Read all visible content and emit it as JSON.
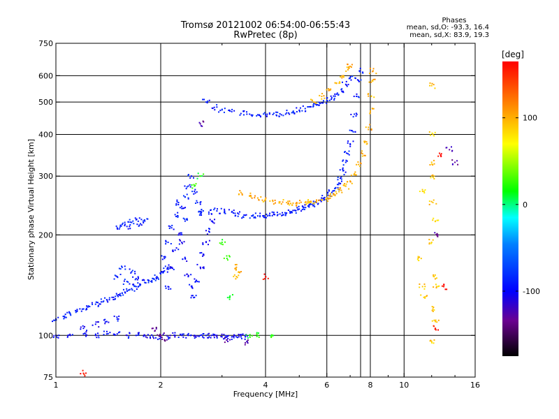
{
  "header": {
    "title": "Tromsø 20121002 06:54:00-06:55:43",
    "subtitle": "RwPretec (8p)"
  },
  "stats": {
    "heading": "Phases",
    "line_o": "mean, sd,O: -93.3, 16.4",
    "line_x": "mean, sd,X:  83.9, 19.3"
  },
  "colorbar": {
    "unit_label": "[deg]",
    "ticks": [
      {
        "value": 100,
        "label": "100"
      },
      {
        "value": 0,
        "label": "0"
      },
      {
        "value": -100,
        "label": "-100"
      }
    ],
    "range": [
      -175,
      165
    ]
  },
  "chart_data": {
    "type": "scatter",
    "xlabel": "Frequency [MHz]",
    "ylabel": "Stationary phase Virtual Height [km]",
    "xscale": "log",
    "yscale": "log",
    "xlim": [
      1,
      16
    ],
    "ylim": [
      75,
      750
    ],
    "xticks": [
      {
        "value": 1,
        "label": "1"
      },
      {
        "value": 2,
        "label": "2"
      },
      {
        "value": 4,
        "label": "4"
      },
      {
        "value": 6,
        "label": "6"
      },
      {
        "value": 8,
        "label": "8"
      },
      {
        "value": 10,
        "label": "10"
      },
      {
        "value": 16,
        "label": "16"
      }
    ],
    "yticks": [
      {
        "value": 75,
        "label": "75"
      },
      {
        "value": 100,
        "label": "100"
      },
      {
        "value": 200,
        "label": "200"
      },
      {
        "value": 300,
        "label": "300"
      },
      {
        "value": 400,
        "label": "400"
      },
      {
        "value": 500,
        "label": "500"
      },
      {
        "value": 600,
        "label": "600"
      },
      {
        "value": 750,
        "label": "750"
      }
    ],
    "grid": {
      "x": [
        2,
        4,
        6,
        7.5,
        8,
        10
      ],
      "y": [
        100,
        200,
        300,
        400,
        500,
        600
      ]
    },
    "series": [
      {
        "phase": -90,
        "points": [
          [
            1.0,
            112
          ],
          [
            1.05,
            114
          ],
          [
            1.1,
            116
          ],
          [
            1.15,
            118
          ],
          [
            1.2,
            120
          ],
          [
            1.25,
            122
          ],
          [
            1.3,
            124
          ],
          [
            1.35,
            126
          ],
          [
            1.4,
            128
          ],
          [
            1.45,
            130
          ],
          [
            1.5,
            132
          ],
          [
            1.55,
            134
          ],
          [
            1.6,
            136
          ],
          [
            1.65,
            138
          ],
          [
            1.7,
            140
          ],
          [
            1.75,
            142
          ],
          [
            1.8,
            144
          ],
          [
            1.85,
            146
          ],
          [
            1.9,
            148
          ],
          [
            1.95,
            150
          ],
          [
            2.0,
            153
          ],
          [
            2.05,
            156
          ],
          [
            2.1,
            160
          ],
          [
            2.6,
            232
          ],
          [
            2.75,
            234
          ],
          [
            2.9,
            236
          ],
          [
            3.05,
            236
          ],
          [
            3.2,
            234
          ],
          [
            3.35,
            231
          ],
          [
            3.5,
            229
          ],
          [
            3.65,
            228
          ],
          [
            3.8,
            228
          ],
          [
            3.95,
            228
          ],
          [
            4.1,
            229
          ],
          [
            4.25,
            230
          ],
          [
            4.4,
            231
          ],
          [
            4.55,
            233
          ],
          [
            4.7,
            235
          ],
          [
            4.85,
            237
          ],
          [
            5.0,
            239
          ],
          [
            5.15,
            242
          ],
          [
            5.3,
            244
          ],
          [
            5.45,
            247
          ],
          [
            5.6,
            250
          ],
          [
            5.75,
            254
          ],
          [
            5.9,
            258
          ],
          [
            6.05,
            263
          ],
          [
            6.2,
            268
          ],
          [
            6.35,
            276
          ],
          [
            6.5,
            286
          ],
          [
            6.6,
            298
          ],
          [
            6.7,
            312
          ],
          [
            6.8,
            330
          ],
          [
            6.9,
            350
          ],
          [
            7.0,
            375
          ],
          [
            7.1,
            410
          ],
          [
            7.2,
            460
          ],
          [
            7.3,
            520
          ],
          [
            7.4,
            580
          ],
          [
            7.45,
            620
          ],
          [
            2.7,
            500
          ],
          [
            2.85,
            482
          ],
          [
            3.0,
            474
          ],
          [
            3.2,
            468
          ],
          [
            3.4,
            462
          ],
          [
            3.6,
            460
          ],
          [
            3.8,
            458
          ],
          [
            4.0,
            458
          ],
          [
            4.2,
            459
          ],
          [
            4.4,
            461
          ],
          [
            4.6,
            464
          ],
          [
            4.8,
            468
          ],
          [
            5.0,
            472
          ],
          [
            5.2,
            478
          ],
          [
            5.4,
            484
          ],
          [
            5.6,
            490
          ],
          [
            5.8,
            497
          ],
          [
            6.0,
            505
          ],
          [
            6.2,
            515
          ],
          [
            6.4,
            528
          ],
          [
            6.6,
            545
          ],
          [
            6.8,
            565
          ],
          [
            7.0,
            590
          ],
          [
            1.5,
            210
          ],
          [
            1.55,
            215
          ],
          [
            1.6,
            212
          ],
          [
            1.65,
            218
          ],
          [
            1.7,
            222
          ],
          [
            1.75,
            216
          ],
          [
            1.8,
            220
          ],
          [
            1.5,
            150
          ],
          [
            1.55,
            160
          ],
          [
            1.6,
            145
          ],
          [
            1.65,
            155
          ],
          [
            1.7,
            148
          ],
          [
            2.05,
            170
          ],
          [
            2.1,
            190
          ],
          [
            2.15,
            210
          ],
          [
            2.2,
            230
          ],
          [
            2.25,
            250
          ],
          [
            2.3,
            240
          ],
          [
            2.35,
            220
          ],
          [
            2.35,
            260
          ],
          [
            2.4,
            280
          ],
          [
            2.45,
            300
          ],
          [
            2.5,
            270
          ],
          [
            2.55,
            250
          ],
          [
            2.6,
            235
          ]
        ]
      },
      {
        "phase": -100,
        "points": [
          [
            1.0,
            100
          ],
          [
            1.1,
            100
          ],
          [
            1.2,
            101
          ],
          [
            1.3,
            100
          ],
          [
            1.4,
            101
          ],
          [
            1.5,
            101
          ],
          [
            1.6,
            100
          ],
          [
            1.7,
            100
          ],
          [
            1.8,
            100
          ],
          [
            1.9,
            99
          ],
          [
            2.0,
            99
          ],
          [
            2.1,
            99
          ],
          [
            2.2,
            100
          ],
          [
            2.3,
            100
          ],
          [
            2.4,
            100
          ],
          [
            2.5,
            100
          ],
          [
            2.6,
            100
          ],
          [
            2.7,
            100
          ],
          [
            2.8,
            100
          ],
          [
            2.9,
            100
          ],
          [
            3.0,
            99
          ],
          [
            3.1,
            99
          ],
          [
            3.2,
            99
          ],
          [
            3.3,
            99
          ],
          [
            3.4,
            99
          ],
          [
            3.5,
            99
          ],
          [
            1.2,
            105
          ],
          [
            1.3,
            108
          ],
          [
            1.4,
            110
          ],
          [
            1.5,
            112
          ],
          [
            2.1,
            140
          ],
          [
            2.15,
            160
          ],
          [
            2.2,
            180
          ],
          [
            2.25,
            200
          ],
          [
            2.3,
            190
          ],
          [
            2.35,
            170
          ],
          [
            2.4,
            150
          ],
          [
            2.45,
            140
          ],
          [
            2.5,
            130
          ],
          [
            2.55,
            145
          ],
          [
            2.6,
            160
          ],
          [
            2.65,
            175
          ],
          [
            2.7,
            190
          ],
          [
            2.75,
            205
          ],
          [
            2.8,
            220
          ]
        ]
      },
      {
        "phase": 100,
        "points": [
          [
            3.4,
            268
          ],
          [
            3.6,
            262
          ],
          [
            3.8,
            258
          ],
          [
            4.0,
            255
          ],
          [
            4.2,
            252
          ],
          [
            4.4,
            251
          ],
          [
            4.6,
            250
          ],
          [
            4.8,
            249
          ],
          [
            5.0,
            249
          ],
          [
            5.2,
            250
          ],
          [
            5.4,
            251
          ],
          [
            5.6,
            252
          ],
          [
            5.8,
            254
          ],
          [
            6.0,
            257
          ],
          [
            6.2,
            261
          ],
          [
            6.4,
            266
          ],
          [
            6.6,
            272
          ],
          [
            6.8,
            280
          ],
          [
            7.0,
            290
          ],
          [
            7.2,
            305
          ],
          [
            7.4,
            325
          ],
          [
            7.6,
            350
          ],
          [
            7.8,
            380
          ],
          [
            7.9,
            420
          ],
          [
            8.0,
            470
          ],
          [
            8.05,
            520
          ],
          [
            8.1,
            580
          ],
          [
            8.15,
            620
          ],
          [
            5.5,
            500
          ],
          [
            5.8,
            520
          ],
          [
            6.1,
            545
          ],
          [
            6.4,
            570
          ],
          [
            6.7,
            600
          ],
          [
            6.9,
            625
          ],
          [
            7.0,
            640
          ],
          [
            3.3,
            150
          ],
          [
            3.3,
            160
          ],
          [
            3.35,
            155
          ]
        ]
      },
      {
        "phase": 90,
        "points": [
          [
            12.0,
            560
          ],
          [
            12.1,
            400
          ],
          [
            12.0,
            330
          ],
          [
            12.2,
            300
          ],
          [
            12.1,
            250
          ],
          [
            12.3,
            220
          ],
          [
            12.0,
            190
          ],
          [
            12.2,
            150
          ],
          [
            12.4,
            140
          ],
          [
            12.1,
            120
          ],
          [
            12.3,
            110
          ],
          [
            12.0,
            96
          ],
          [
            11.3,
            270
          ],
          [
            11.2,
            170
          ],
          [
            11.3,
            140
          ],
          [
            11.4,
            130
          ]
        ]
      },
      {
        "phase": 20,
        "points": [
          [
            3.0,
            190
          ],
          [
            3.1,
            170
          ],
          [
            3.15,
            130
          ],
          [
            3.6,
            100
          ],
          [
            3.8,
            100
          ],
          [
            4.2,
            100
          ],
          [
            2.5,
            280
          ],
          [
            2.6,
            300
          ]
        ]
      },
      {
        "phase": -130,
        "points": [
          [
            12.5,
            200
          ],
          [
            13.5,
            360
          ],
          [
            14.0,
            330
          ],
          [
            2.6,
            430
          ],
          [
            1.9,
            105
          ],
          [
            2.0,
            100
          ],
          [
            2.05,
            97
          ],
          [
            3.1,
            97
          ],
          [
            3.5,
            95
          ]
        ]
      },
      {
        "phase": 160,
        "points": [
          [
            1.2,
            77
          ],
          [
            4.0,
            150
          ],
          [
            12.3,
            105
          ],
          [
            13.0,
            140
          ],
          [
            12.8,
            350
          ]
        ]
      }
    ]
  }
}
